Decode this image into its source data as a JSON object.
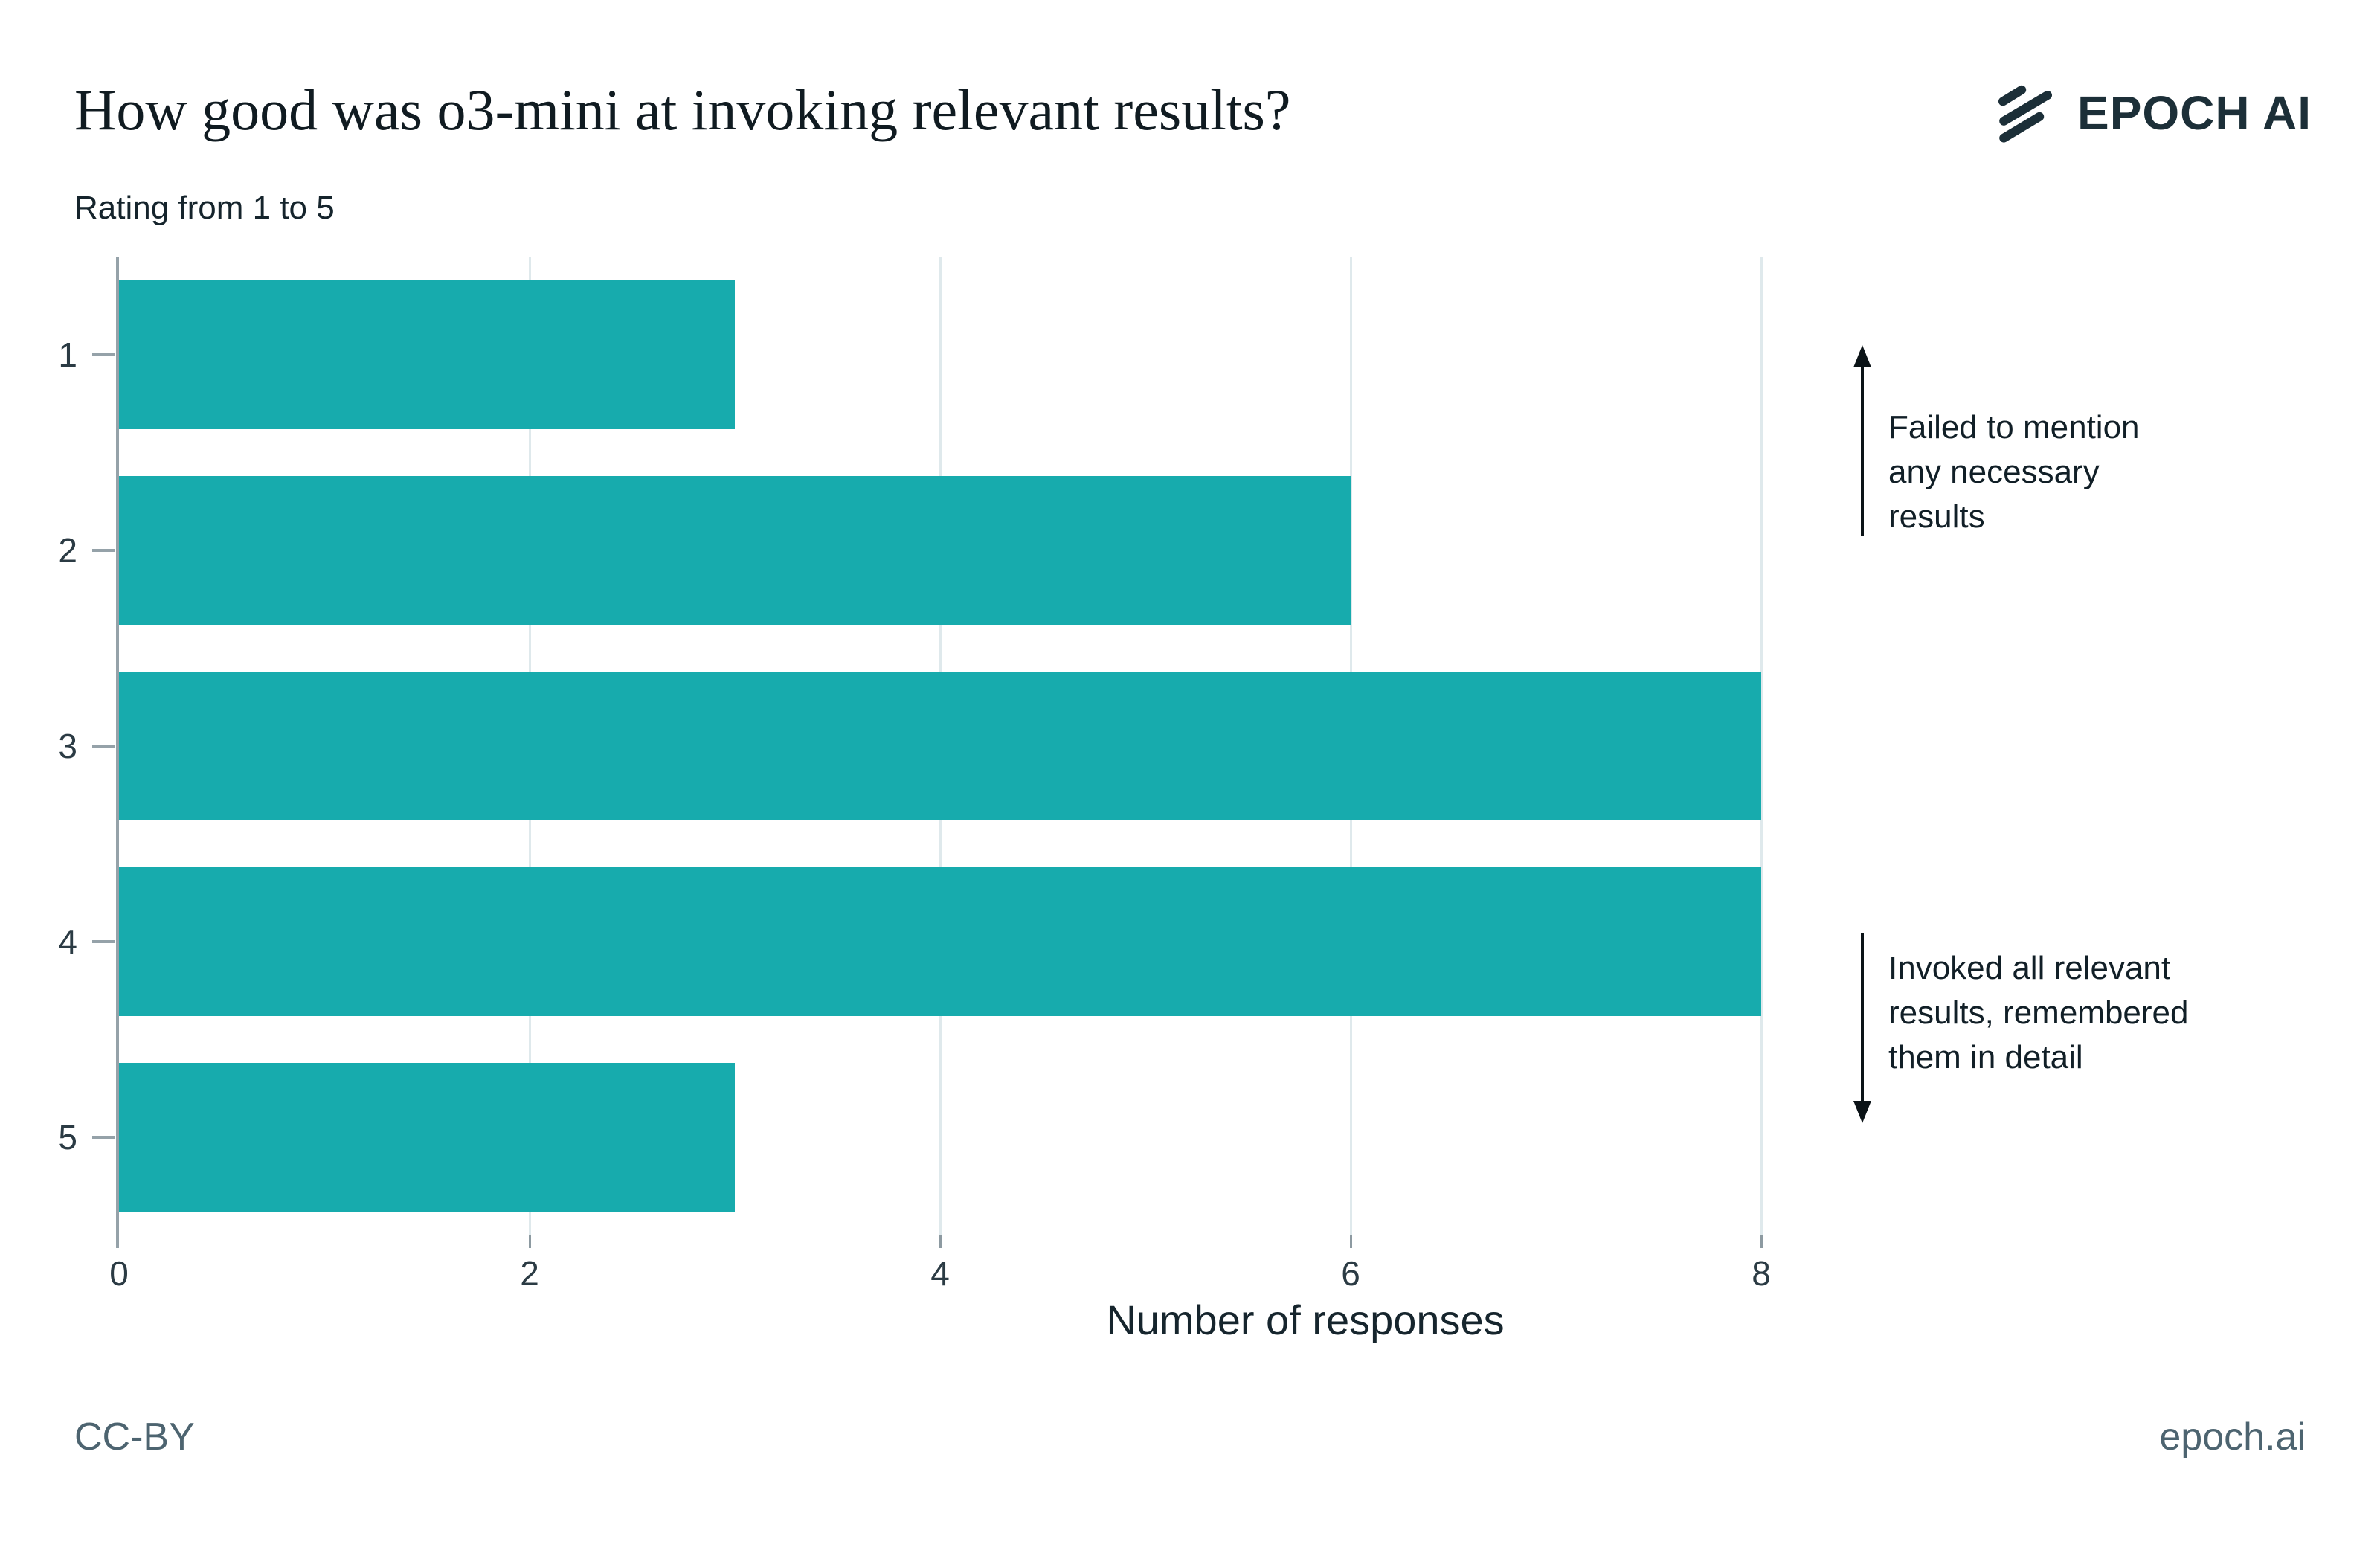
{
  "header": {
    "title": "How good was o3-mini at invoking relevant results?",
    "subtitle": "Rating from 1 to 5"
  },
  "logo": {
    "text": "EPOCH AI"
  },
  "chart_data": {
    "type": "bar",
    "orientation": "horizontal",
    "title": "How good was o3-mini at invoking relevant results?",
    "ylabel": "Rating from 1 to 5",
    "xlabel": "Number of responses",
    "categories": [
      "1",
      "2",
      "3",
      "4",
      "5"
    ],
    "values": [
      3,
      6,
      8,
      8,
      3
    ],
    "xlim": [
      0,
      8
    ],
    "x_ticks": [
      0,
      2,
      4,
      6,
      8
    ],
    "grid": "vertical-light",
    "legend": "none",
    "colors": {
      "bar": "#17abad",
      "gridline": "#dfe9ec",
      "axis_line": "#95a2a9",
      "tick_mark": "#8d9aa1",
      "tick_text": "#2b3b44",
      "arrow": "#0b1317"
    },
    "annotations": [
      {
        "arrow": "up",
        "text": "Failed to mention\nany necessary\nresults"
      },
      {
        "arrow": "down",
        "text": "Invoked all relevant\nresults, remembered\nthem in detail"
      }
    ]
  },
  "footer": {
    "license": "CC-BY",
    "site": "epoch.ai"
  }
}
